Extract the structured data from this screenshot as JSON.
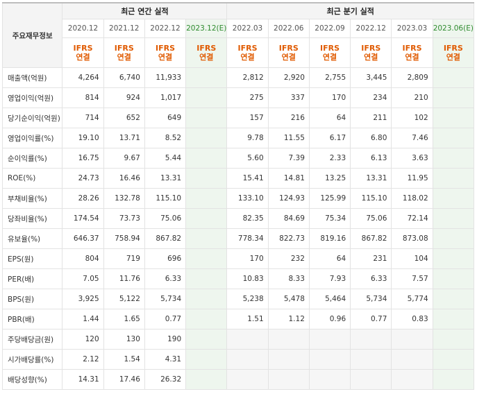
{
  "header": {
    "row_label": "주요재무정보",
    "annual_group": "최근 연간 실적",
    "quarter_group": "최근 분기 실적",
    "periods": [
      "2020.12",
      "2021.12",
      "2022.12",
      "2023.12(E)",
      "2022.03",
      "2022.06",
      "2022.09",
      "2022.12",
      "2023.03",
      "2023.06(E)"
    ],
    "ifrs_line1": "IFRS",
    "ifrs_line2": "연결"
  },
  "rows": [
    {
      "label": "매출액(억원)",
      "values": [
        "4,264",
        "6,740",
        "11,933",
        "",
        "2,812",
        "2,920",
        "2,755",
        "3,445",
        "2,809",
        ""
      ]
    },
    {
      "label": "영업이익(억원)",
      "values": [
        "814",
        "924",
        "1,017",
        "",
        "275",
        "337",
        "170",
        "234",
        "210",
        ""
      ]
    },
    {
      "label": "당기순이익(억원)",
      "values": [
        "714",
        "652",
        "649",
        "",
        "157",
        "216",
        "64",
        "211",
        "102",
        ""
      ]
    },
    {
      "label": "영업이익률(%)",
      "values": [
        "19.10",
        "13.71",
        "8.52",
        "",
        "9.78",
        "11.55",
        "6.17",
        "6.80",
        "7.46",
        ""
      ]
    },
    {
      "label": "순이익률(%)",
      "values": [
        "16.75",
        "9.67",
        "5.44",
        "",
        "5.60",
        "7.39",
        "2.33",
        "6.13",
        "3.63",
        ""
      ]
    },
    {
      "label": "ROE(%)",
      "values": [
        "24.73",
        "16.46",
        "13.31",
        "",
        "15.41",
        "14.81",
        "13.25",
        "13.31",
        "11.95",
        ""
      ]
    },
    {
      "label": "부채비율(%)",
      "values": [
        "28.26",
        "132.78",
        "115.10",
        "",
        "133.10",
        "124.93",
        "125.99",
        "115.10",
        "118.02",
        ""
      ]
    },
    {
      "label": "당좌비율(%)",
      "values": [
        "174.54",
        "73.73",
        "75.06",
        "",
        "82.35",
        "84.69",
        "75.34",
        "75.06",
        "72.14",
        ""
      ]
    },
    {
      "label": "유보율(%)",
      "values": [
        "646.37",
        "758.94",
        "867.82",
        "",
        "778.34",
        "822.73",
        "819.16",
        "867.82",
        "873.08",
        ""
      ]
    },
    {
      "label": "EPS(원)",
      "values": [
        "804",
        "719",
        "696",
        "",
        "170",
        "232",
        "64",
        "231",
        "104",
        ""
      ]
    },
    {
      "label": "PER(배)",
      "values": [
        "7.05",
        "11.76",
        "6.33",
        "",
        "10.83",
        "8.33",
        "7.93",
        "6.33",
        "7.57",
        ""
      ]
    },
    {
      "label": "BPS(원)",
      "values": [
        "3,925",
        "5,122",
        "5,734",
        "",
        "5,238",
        "5,478",
        "5,464",
        "5,734",
        "5,774",
        ""
      ]
    },
    {
      "label": "PBR(배)",
      "values": [
        "1.44",
        "1.65",
        "0.77",
        "",
        "1.51",
        "1.12",
        "0.96",
        "0.77",
        "0.83",
        ""
      ]
    },
    {
      "label": "주당배당금(원)",
      "values": [
        "120",
        "130",
        "190",
        "",
        "",
        "",
        "",
        "",
        "",
        ""
      ]
    },
    {
      "label": "시가배당률(%)",
      "values": [
        "2.12",
        "1.54",
        "4.31",
        "",
        "",
        "",
        "",
        "",
        "",
        ""
      ]
    },
    {
      "label": "배당성향(%)",
      "values": [
        "14.31",
        "17.46",
        "26.32",
        "",
        "",
        "",
        "",
        "",
        "",
        ""
      ]
    }
  ],
  "colors": {
    "ifrs": "#e05a00",
    "estimate_bg": "#eef6ee",
    "estimate_text": "#2e8b2e",
    "header_bg": "#f4f4f4"
  }
}
